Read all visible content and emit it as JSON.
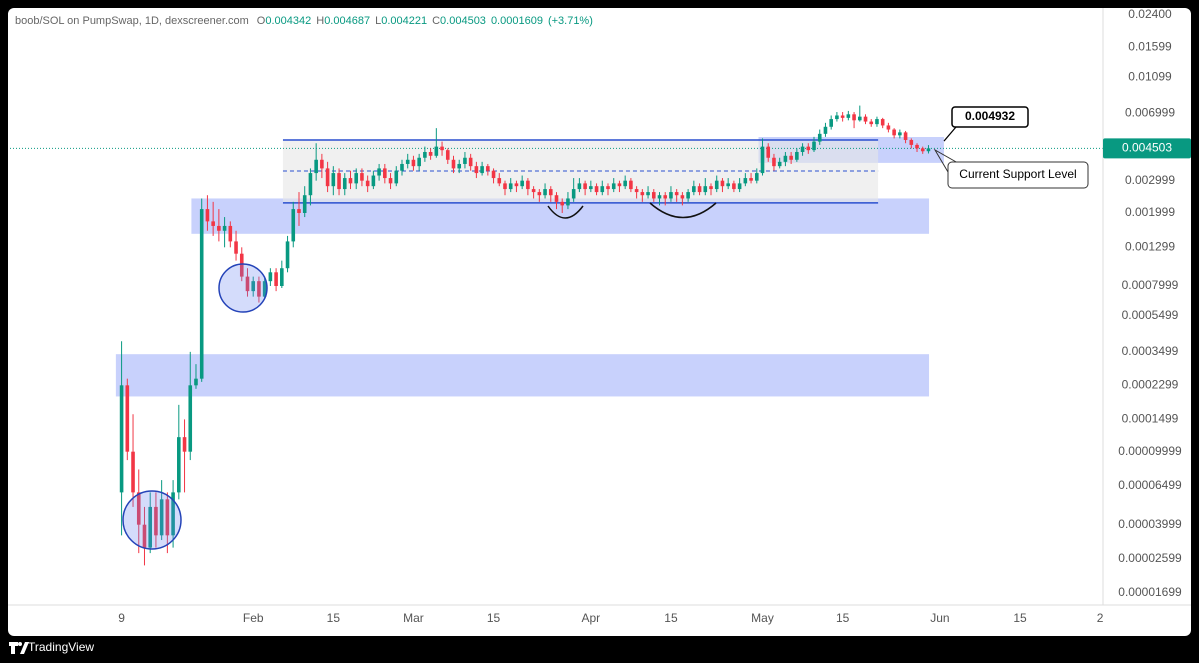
{
  "chart_data": {
    "type": "candlestick",
    "header": {
      "symbol": "boob/SOL on PumpSwap, 1D, dexscreener.com",
      "ohlc": [
        {
          "label": "O",
          "value": 0.004342
        },
        {
          "label": "H",
          "value": 0.004687
        },
        {
          "label": "L",
          "value": 0.004221
        },
        {
          "label": "C",
          "value": 0.004503
        }
      ],
      "change": 0.0001609,
      "change_pct": "(+3.71%)"
    },
    "xlim": [
      -10.5,
      180.5
    ],
    "xticks": [
      {
        "value": 9,
        "label": "9"
      },
      {
        "value": 32,
        "label": "Feb"
      },
      {
        "value": 46,
        "label": "15"
      },
      {
        "value": 60,
        "label": "Mar"
      },
      {
        "value": 74,
        "label": "15"
      },
      {
        "value": 91,
        "label": "Apr"
      },
      {
        "value": 105,
        "label": "15"
      },
      {
        "value": 121,
        "label": "May"
      },
      {
        "value": 135,
        "label": "15"
      },
      {
        "value": 152,
        "label": "Jun"
      },
      {
        "value": 166,
        "label": "15"
      },
      {
        "value": 180,
        "label": "2"
      }
    ],
    "ylim": [
      1.46e-05,
      0.0262
    ],
    "log_y": true,
    "grid": false,
    "yticks": [
      {
        "value": 0.024,
        "label": "0.02400"
      },
      0.01599,
      0.01099,
      0.006999,
      0.002999,
      0.001999,
      0.001299,
      0.0007999,
      0.0005499,
      0.0003499,
      0.0002299,
      0.0001499,
      9.999e-05,
      6.499e-05,
      3.999e-05,
      2.599e-05,
      1.699e-05
    ],
    "up_color": "#089981",
    "down_color": "#f23645",
    "candles": {
      "x": [
        9,
        10,
        11,
        12,
        13,
        14,
        15,
        16,
        17,
        18,
        19,
        20,
        21,
        22,
        23,
        24,
        25,
        26,
        27,
        28,
        29,
        30,
        31,
        32,
        33,
        34,
        35,
        36,
        37,
        38,
        39,
        40,
        41,
        42,
        43,
        44,
        45,
        46,
        47,
        48,
        49,
        50,
        51,
        52,
        53,
        54,
        55,
        56,
        57,
        58,
        59,
        60,
        61,
        62,
        63,
        64,
        65,
        66,
        67,
        68,
        69,
        70,
        71,
        72,
        73,
        74,
        75,
        76,
        77,
        78,
        79,
        80,
        81,
        82,
        83,
        84,
        85,
        86,
        87,
        88,
        89,
        90,
        91,
        92,
        93,
        94,
        95,
        96,
        97,
        98,
        99,
        100,
        101,
        102,
        103,
        104,
        105,
        106,
        107,
        108,
        109,
        110,
        111,
        112,
        113,
        114,
        115,
        116,
        117,
        118,
        119,
        120,
        121,
        122,
        123,
        124,
        125,
        126,
        127,
        128,
        129,
        130,
        131,
        132,
        133,
        134,
        135,
        136,
        137,
        138,
        139,
        140,
        141,
        142,
        143,
        144,
        145,
        146,
        147,
        148,
        149,
        150
      ],
      "open": [
        6e-05,
        0.00023,
        0.0001,
        6e-05,
        4e-05,
        3e-05,
        5e-05,
        3.5e-05,
        5.5e-05,
        3.5e-05,
        6e-05,
        0.00012,
        0.0001,
        0.00023,
        0.00025,
        0.0021,
        0.0018,
        0.0017,
        0.0016,
        0.0017,
        0.0014,
        0.0012,
        0.0009,
        0.00075,
        0.00085,
        0.0007,
        0.00085,
        0.00095,
        0.0008,
        0.001,
        0.0014,
        0.0021,
        0.002,
        0.0025,
        0.0033,
        0.0039,
        0.0035,
        0.0028,
        0.0033,
        0.0027,
        0.0031,
        0.0029,
        0.0033,
        0.003,
        0.0028,
        0.0032,
        0.0035,
        0.0031,
        0.0029,
        0.0034,
        0.0037,
        0.0039,
        0.0036,
        0.004,
        0.0043,
        0.0041,
        0.0046,
        0.0044,
        0.0039,
        0.0035,
        0.0037,
        0.004,
        0.0036,
        0.0033,
        0.0036,
        0.0034,
        0.0031,
        0.0029,
        0.0027,
        0.0029,
        0.0028,
        0.003,
        0.0027,
        0.0026,
        0.0025,
        0.0027,
        0.0025,
        0.0023,
        0.0022,
        0.0024,
        0.0027,
        0.0029,
        0.0027,
        0.0028,
        0.0026,
        0.0028,
        0.0027,
        0.0029,
        0.0028,
        0.003,
        0.0027,
        0.0026,
        0.0025,
        0.0026,
        0.0024,
        0.0025,
        0.0024,
        0.0026,
        0.0025,
        0.0024,
        0.0026,
        0.0028,
        0.0026,
        0.0028,
        0.0027,
        0.003,
        0.0028,
        0.0029,
        0.0027,
        0.0029,
        0.0031,
        0.003,
        0.0033,
        0.0046,
        0.004,
        0.0036,
        0.0038,
        0.0041,
        0.0039,
        0.0043,
        0.0046,
        0.0044,
        0.0049,
        0.0054,
        0.0059,
        0.0065,
        0.0068,
        0.0066,
        0.0069,
        0.0064,
        0.0067,
        0.0063,
        0.0061,
        0.0065,
        0.006,
        0.0057,
        0.0053,
        0.0055,
        0.005,
        0.0047,
        0.0045,
        0.004342
      ],
      "high": [
        0.0004,
        0.00025,
        0.00016,
        8e-05,
        5e-05,
        6e-05,
        6e-05,
        7e-05,
        6e-05,
        7e-05,
        0.00018,
        0.00015,
        0.00035,
        0.0003,
        0.0024,
        0.0025,
        0.0023,
        0.0021,
        0.0019,
        0.0018,
        0.0016,
        0.0013,
        0.001,
        0.0009,
        0.0009,
        0.0009,
        0.001,
        0.001,
        0.0011,
        0.0015,
        0.0023,
        0.0026,
        0.0028,
        0.0035,
        0.0048,
        0.0042,
        0.0038,
        0.0036,
        0.0035,
        0.0033,
        0.0034,
        0.0035,
        0.0035,
        0.0032,
        0.0034,
        0.0037,
        0.0037,
        0.0033,
        0.0036,
        0.0039,
        0.0042,
        0.0041,
        0.0042,
        0.0046,
        0.0045,
        0.0058,
        0.0049,
        0.0045,
        0.0041,
        0.0039,
        0.0043,
        0.0042,
        0.0038,
        0.0038,
        0.0037,
        0.0035,
        0.0033,
        0.003,
        0.0031,
        0.003,
        0.0032,
        0.0031,
        0.0028,
        0.0027,
        0.0029,
        0.0028,
        0.0026,
        0.0024,
        0.0026,
        0.0031,
        0.0031,
        0.003,
        0.003,
        0.0029,
        0.003,
        0.0029,
        0.0031,
        0.003,
        0.0032,
        0.0031,
        0.0028,
        0.0027,
        0.0028,
        0.0027,
        0.0026,
        0.0026,
        0.0028,
        0.0027,
        0.0026,
        0.0027,
        0.003,
        0.0029,
        0.0031,
        0.0029,
        0.0032,
        0.0031,
        0.0031,
        0.003,
        0.0031,
        0.0033,
        0.0033,
        0.0035,
        0.0051,
        0.0048,
        0.0042,
        0.004,
        0.0043,
        0.0043,
        0.0045,
        0.0048,
        0.0048,
        0.0052,
        0.0057,
        0.0062,
        0.0068,
        0.0071,
        0.0071,
        0.0072,
        0.0071,
        0.0077,
        0.0069,
        0.0065,
        0.0067,
        0.0066,
        0.0062,
        0.0058,
        0.0057,
        0.0056,
        0.0051,
        0.0048,
        0.0046,
        0.004687
      ],
      "low": [
        3.5e-05,
        9e-05,
        5e-05,
        2.8e-05,
        2.4e-05,
        2.8e-05,
        3e-05,
        3.3e-05,
        2.8e-05,
        3e-05,
        5.5e-05,
        6e-05,
        9e-05,
        0.00022,
        0.00024,
        0.0016,
        0.0015,
        0.0014,
        0.0013,
        0.0013,
        0.0011,
        0.00085,
        0.0007,
        0.0007,
        0.00065,
        0.00068,
        0.0008,
        0.00075,
        0.00078,
        0.00095,
        0.0013,
        0.0017,
        0.0019,
        0.0022,
        0.003,
        0.0031,
        0.0026,
        0.0025,
        0.0025,
        0.0025,
        0.0027,
        0.0027,
        0.0028,
        0.0026,
        0.0027,
        0.003,
        0.0029,
        0.0027,
        0.0028,
        0.0032,
        0.0035,
        0.0034,
        0.0034,
        0.0038,
        0.0039,
        0.004,
        0.0041,
        0.0037,
        0.0033,
        0.0033,
        0.0035,
        0.0034,
        0.0031,
        0.0032,
        0.0032,
        0.0029,
        0.0028,
        0.0025,
        0.0026,
        0.0026,
        0.0027,
        0.0025,
        0.0024,
        0.0023,
        0.0024,
        0.0023,
        0.0021,
        0.002,
        0.0021,
        0.0023,
        0.0026,
        0.0025,
        0.0026,
        0.0025,
        0.0025,
        0.0025,
        0.0026,
        0.0026,
        0.0027,
        0.0026,
        0.0024,
        0.0023,
        0.0024,
        0.0023,
        0.0022,
        0.0022,
        0.0023,
        0.0023,
        0.0022,
        0.0023,
        0.0025,
        0.0025,
        0.0025,
        0.0025,
        0.0026,
        0.0026,
        0.0027,
        0.0026,
        0.0026,
        0.0028,
        0.0029,
        0.0029,
        0.0032,
        0.0038,
        0.0034,
        0.0035,
        0.0036,
        0.0037,
        0.0038,
        0.0041,
        0.0042,
        0.0043,
        0.0047,
        0.0052,
        0.0057,
        0.0063,
        0.0063,
        0.0064,
        0.0058,
        0.0063,
        0.0061,
        0.0059,
        0.0059,
        0.0058,
        0.0055,
        0.0051,
        0.0051,
        0.0048,
        0.0045,
        0.0043,
        0.0042,
        0.004221
      ],
      "close": [
        0.00023,
        0.0001,
        6e-05,
        4e-05,
        3e-05,
        5e-05,
        3.5e-05,
        5.5e-05,
        3.5e-05,
        6e-05,
        0.00012,
        0.0001,
        0.00023,
        0.00025,
        0.0021,
        0.0018,
        0.0017,
        0.0016,
        0.0017,
        0.0014,
        0.0012,
        0.0009,
        0.00075,
        0.00085,
        0.0007,
        0.00085,
        0.00095,
        0.0008,
        0.001,
        0.0014,
        0.0021,
        0.002,
        0.0025,
        0.0033,
        0.0039,
        0.0035,
        0.0028,
        0.0033,
        0.0027,
        0.0031,
        0.0029,
        0.0033,
        0.003,
        0.0028,
        0.0032,
        0.0035,
        0.0031,
        0.0029,
        0.0034,
        0.0037,
        0.0039,
        0.0036,
        0.004,
        0.0043,
        0.0041,
        0.0046,
        0.0044,
        0.0039,
        0.0035,
        0.0037,
        0.004,
        0.0036,
        0.0033,
        0.0036,
        0.0034,
        0.0031,
        0.0029,
        0.0027,
        0.0029,
        0.0028,
        0.003,
        0.0027,
        0.0026,
        0.0025,
        0.0027,
        0.0025,
        0.0023,
        0.0022,
        0.0024,
        0.0027,
        0.0029,
        0.0027,
        0.0028,
        0.0026,
        0.0028,
        0.0027,
        0.0029,
        0.0028,
        0.003,
        0.0027,
        0.0026,
        0.0025,
        0.0026,
        0.0024,
        0.0025,
        0.0024,
        0.0026,
        0.0025,
        0.0024,
        0.0026,
        0.0028,
        0.0026,
        0.0028,
        0.0027,
        0.003,
        0.0028,
        0.0029,
        0.0027,
        0.0029,
        0.0031,
        0.003,
        0.0033,
        0.0046,
        0.004,
        0.0036,
        0.0038,
        0.0041,
        0.0039,
        0.0043,
        0.0046,
        0.0044,
        0.0049,
        0.0054,
        0.0059,
        0.0065,
        0.0068,
        0.0066,
        0.0069,
        0.0064,
        0.0067,
        0.0063,
        0.0061,
        0.0065,
        0.006,
        0.0057,
        0.0053,
        0.0055,
        0.005,
        0.0047,
        0.0045,
        0.00434,
        0.004503
      ]
    },
    "zones": [
      {
        "x": [
          8,
          150.1
        ],
        "y": [
          0.0002,
          0.00034
        ],
        "color": "#aab8fb"
      },
      {
        "x": [
          21.2,
          150.1
        ],
        "y": [
          0.00154,
          0.0024
        ],
        "color": "#aab8fb"
      },
      {
        "x": [
          120.3,
          152.7
        ],
        "y": [
          0.00375,
          0.00519
        ],
        "color": "#aab8fb"
      }
    ],
    "range_box": {
      "x": [
        37.2,
        141.2
      ],
      "top": 0.005,
      "mid": 0.00339,
      "bottom": 0.00227,
      "line_color": "#2a4fcf",
      "fill": "#e6e6e6"
    },
    "last_price": 0.004503,
    "last_price_color": "#089981",
    "callout_price": 0.004932,
    "callout_text": "Current Support Level",
    "branding": "TradingView"
  }
}
